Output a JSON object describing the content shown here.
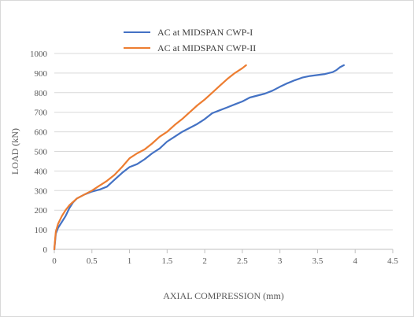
{
  "chart_data": {
    "type": "line",
    "xlabel": "AXIAL COMPRESSION (mm)",
    "ylabel": "LOAD (kN)",
    "xlim": [
      0,
      4.5
    ],
    "ylim": [
      0,
      1000
    ],
    "x_ticks": [
      "0",
      "0.5",
      "1",
      "1.5",
      "2",
      "2.5",
      "3",
      "3.5",
      "4",
      "4.5"
    ],
    "y_ticks": [
      "0",
      "100",
      "200",
      "300",
      "400",
      "500",
      "600",
      "700",
      "800",
      "900",
      "1000"
    ],
    "grid": "horizontal",
    "legend": "top",
    "series": [
      {
        "name": "AC at MIDSPAN CWP-I",
        "color": "#4472c4",
        "x": [
          0,
          0.01,
          0.02,
          0.05,
          0.1,
          0.15,
          0.2,
          0.25,
          0.3,
          0.4,
          0.5,
          0.6,
          0.7,
          0.8,
          0.9,
          1.0,
          1.1,
          1.2,
          1.3,
          1.4,
          1.5,
          1.6,
          1.7,
          1.8,
          1.9,
          2.0,
          2.1,
          2.2,
          2.3,
          2.4,
          2.5,
          2.6,
          2.7,
          2.8,
          2.9,
          3.0,
          3.1,
          3.2,
          3.3,
          3.4,
          3.5,
          3.6,
          3.7,
          3.75,
          3.8,
          3.85
        ],
        "y": [
          0,
          40,
          80,
          110,
          140,
          170,
          210,
          240,
          260,
          280,
          295,
          305,
          320,
          355,
          390,
          420,
          435,
          460,
          490,
          515,
          550,
          575,
          600,
          620,
          640,
          665,
          695,
          710,
          725,
          740,
          755,
          775,
          785,
          795,
          810,
          830,
          848,
          864,
          877,
          885,
          890,
          895,
          905,
          915,
          930,
          940
        ]
      },
      {
        "name": "AC at MIDSPAN CWP-II",
        "color": "#ed7d31",
        "x": [
          0,
          0.01,
          0.02,
          0.05,
          0.1,
          0.15,
          0.2,
          0.3,
          0.4,
          0.5,
          0.6,
          0.7,
          0.8,
          0.9,
          1.0,
          1.1,
          1.2,
          1.3,
          1.4,
          1.5,
          1.6,
          1.7,
          1.8,
          1.9,
          2.0,
          2.1,
          2.2,
          2.3,
          2.4,
          2.5,
          2.55
        ],
        "y": [
          0,
          50,
          90,
          130,
          170,
          200,
          225,
          260,
          280,
          300,
          325,
          350,
          380,
          420,
          465,
          490,
          510,
          540,
          575,
          600,
          635,
          665,
          700,
          735,
          765,
          800,
          835,
          870,
          900,
          925,
          940
        ]
      }
    ]
  }
}
